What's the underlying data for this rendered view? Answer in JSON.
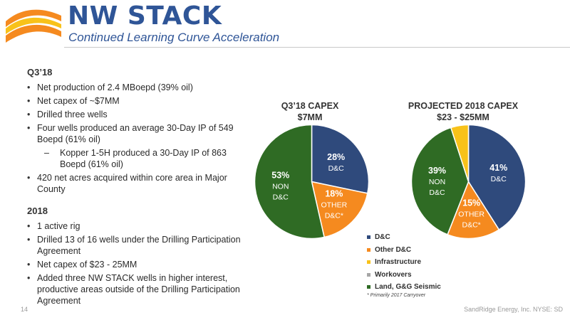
{
  "header": {
    "title": "NW STACK",
    "subtitle": "Continued Learning Curve Acceleration"
  },
  "left": {
    "q3_heading": "Q3’18",
    "q3_bullets": [
      "Net production of 2.4 MBoepd (39% oil)",
      "Net capex of ~$7MM",
      "Drilled three wells",
      "Four wells produced an average 30-Day IP of 549 Boepd (61% oil)"
    ],
    "q3_sub": "Kopper 1-5H produced a 30-Day IP of 863 Boepd (61% oil)",
    "q3_last_bullet": "420 net acres acquired within core area in Major County",
    "y2018_heading": "2018",
    "y2018_bullets": [
      "1 active rig",
      "Drilled 13 of 16 wells under the Drilling Participation Agreement",
      "Net capex of $23 - 25MM",
      "Added three NW STACK wells in higher interest, productive areas outside of the Drilling Participation Agreement"
    ]
  },
  "chart_data": [
    {
      "type": "pie",
      "title": "Q3’18 CAPEX\n$7MM",
      "slices": [
        {
          "name": "D&C",
          "value": 28,
          "color": "#2f4a7c",
          "label_pct": "28%",
          "label_lines": [
            "D&C"
          ]
        },
        {
          "name": "Other D&C",
          "value": 18,
          "color": "#f58a1f",
          "label_pct": "18%",
          "label_lines": [
            "OTHER",
            "D&C*"
          ]
        },
        {
          "name": "Land, G&G Seismic",
          "value": 53,
          "color": "#2f6b24",
          "label_pct": "53%",
          "label_lines": [
            "NON",
            "D&C"
          ]
        }
      ]
    },
    {
      "type": "pie",
      "title": "PROJECTED 2018 CAPEX\n$23 - $25MM",
      "slices": [
        {
          "name": "D&C",
          "value": 41,
          "color": "#2f4a7c",
          "label_pct": "41%",
          "label_lines": [
            "D&C"
          ]
        },
        {
          "name": "Other D&C",
          "value": 15,
          "color": "#f58a1f",
          "label_pct": "15%",
          "label_lines": [
            "OTHER",
            "D&C*"
          ]
        },
        {
          "name": "Land, G&G Seismic",
          "value": 39,
          "color": "#2f6b24",
          "label_pct": "39%",
          "label_lines": [
            "NON",
            "D&C"
          ]
        },
        {
          "name": "Infrastructure",
          "value": 5,
          "color": "#f8c21a",
          "label_pct": "",
          "label_lines": []
        }
      ]
    }
  ],
  "legend": {
    "items": [
      {
        "label": "D&C",
        "color": "#2f4a7c"
      },
      {
        "label": "Other D&C",
        "color": "#f58a1f"
      },
      {
        "label": "Infrastructure",
        "color": "#f8c21a"
      },
      {
        "label": "Workovers",
        "color": "#a6a6a6"
      },
      {
        "label": "Land, G&G Seismic",
        "color": "#2f6b24"
      }
    ],
    "footnote": "* Primarily 2017 Carryover"
  },
  "footer": {
    "page_number": "14",
    "company": "SandRidge Energy, Inc.  NYSE: SD"
  },
  "logo_colors": {
    "dark": "#2f5597",
    "orange": "#f58a1f",
    "yellow": "#f8c21a"
  }
}
